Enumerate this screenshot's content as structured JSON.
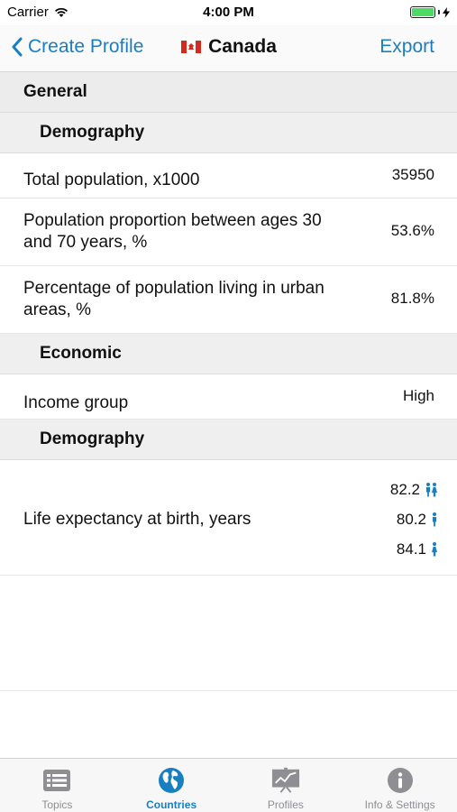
{
  "status_bar": {
    "carrier": "Carrier",
    "time": "4:00 PM"
  },
  "nav": {
    "back_label": "Create Profile",
    "title": "Canada",
    "export_label": "Export"
  },
  "sections": {
    "general": "General",
    "demography_1": "Demography",
    "economic": "Economic",
    "demography_2": "Demography"
  },
  "rows": {
    "total_population": {
      "label": "Total population, x1000",
      "value": "35950"
    },
    "population_proportion": {
      "label": "Population proportion between ages 30 and 70 years, %",
      "value": "53.6%"
    },
    "urban_population": {
      "label": "Percentage of population living in urban areas, %",
      "value": "81.8%"
    },
    "income_group": {
      "label": "Income group",
      "value": "High"
    },
    "life_expectancy": {
      "label": "Life expectancy at birth, years",
      "both": "82.2",
      "male": "80.2",
      "female": "84.1"
    }
  },
  "tabs": [
    {
      "label": "Topics",
      "icon": "topics-icon",
      "active": false
    },
    {
      "label": "Countries",
      "icon": "globe-icon",
      "active": true
    },
    {
      "label": "Profiles",
      "icon": "presentation-chart-icon",
      "active": false
    },
    {
      "label": "Info & Settings",
      "icon": "info-icon",
      "active": false
    }
  ],
  "colors": {
    "accent": "#1a7fc1",
    "section_bg": "#ececec",
    "inactive_tab": "#8e8e93"
  }
}
